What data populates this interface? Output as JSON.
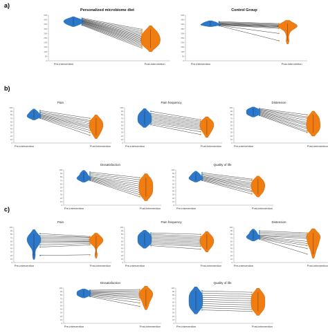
{
  "sections": [
    "a)",
    "b)",
    "c)"
  ],
  "colors": {
    "pre": "#2e78c9",
    "post": "#f07d12",
    "line": "#222222",
    "axis": "#999999"
  },
  "chart_data": [
    {
      "id": "a1",
      "section": "a)",
      "type": "violin-paired",
      "title": "Personalized microbiome diet",
      "bold": true,
      "categories": [
        "Pre-intervention",
        "Post-intervention"
      ],
      "ylim": [
        0,
        500
      ],
      "yticks": [
        "0",
        "50",
        "100",
        "150",
        "200",
        "250",
        "300",
        "350",
        "400",
        "450",
        "500"
      ],
      "pre": [
        468,
        460,
        455,
        450,
        445,
        440,
        436,
        432,
        428,
        422,
        418,
        414,
        408,
        402,
        396,
        390
      ],
      "post": [
        345,
        328,
        310,
        295,
        280,
        268,
        256,
        244,
        232,
        220,
        208,
        196,
        184,
        170,
        156,
        140
      ]
    },
    {
      "id": "a2",
      "section": "a)",
      "type": "violin-paired",
      "title": "Control Group",
      "bold": true,
      "categories": [
        "Pre-intervention",
        "Post-intervention"
      ],
      "ylim": [
        0,
        500
      ],
      "yticks": [
        "0",
        "50",
        "100",
        "150",
        "200",
        "250",
        "300",
        "350",
        "400",
        "450",
        "500"
      ],
      "pre": [
        430,
        422,
        416,
        410,
        405,
        400,
        396,
        392,
        388,
        384
      ],
      "post": [
        408,
        400,
        392,
        385,
        378,
        372,
        365,
        355,
        300,
        220
      ]
    },
    {
      "id": "b1",
      "section": "b)",
      "type": "violin-paired",
      "title": "Pain",
      "bold": false,
      "categories": [
        "Pre-intervention",
        "Post-intervention"
      ],
      "ylim": [
        0,
        100
      ],
      "yticks": [
        "0",
        "10",
        "20",
        "30",
        "40",
        "50",
        "60",
        "70",
        "80",
        "90",
        "100"
      ],
      "pre": [
        92,
        88,
        85,
        82,
        80,
        78,
        76,
        74,
        72,
        70
      ],
      "post": [
        70,
        64,
        60,
        55,
        50,
        46,
        42,
        36,
        30,
        22
      ]
    },
    {
      "id": "b2",
      "section": "b)",
      "type": "violin-paired",
      "title": "Pain frequency",
      "bold": false,
      "categories": [
        "Pre-intervention",
        "Post-intervention"
      ],
      "ylim": [
        0,
        100
      ],
      "yticks": [
        "0",
        "10",
        "20",
        "30",
        "40",
        "50",
        "60",
        "70",
        "80",
        "90",
        "100"
      ],
      "pre": [
        90,
        84,
        80,
        76,
        72,
        68,
        64,
        60,
        56,
        52
      ],
      "post": [
        66,
        62,
        58,
        54,
        50,
        46,
        42,
        38,
        32,
        24
      ]
    },
    {
      "id": "b3",
      "section": "b)",
      "type": "violin-paired",
      "title": "Distension",
      "bold": false,
      "categories": [
        "Pre-intervention",
        "Post-intervention"
      ],
      "ylim": [
        0,
        100
      ],
      "yticks": [
        "0",
        "10",
        "20",
        "30",
        "40",
        "50",
        "60",
        "70",
        "80",
        "90",
        "100"
      ],
      "pre": [
        98,
        96,
        94,
        92,
        90,
        88,
        86,
        84,
        82,
        80,
        78
      ],
      "post": [
        80,
        74,
        70,
        64,
        58,
        54,
        50,
        44,
        40,
        34,
        30
      ]
    },
    {
      "id": "b4",
      "section": "b)",
      "type": "violin-paired",
      "title": "Dissatisfaction",
      "bold": false,
      "categories": [
        "Pre-intervention",
        "Post-intervention"
      ],
      "ylim": [
        0,
        100
      ],
      "yticks": [
        "0",
        "10",
        "20",
        "30",
        "40",
        "50",
        "60",
        "70",
        "80",
        "90",
        "100"
      ],
      "pre": [
        94,
        90,
        86,
        82,
        80,
        78,
        76,
        74,
        72,
        70
      ],
      "post": [
        78,
        72,
        66,
        60,
        54,
        48,
        42,
        36,
        30,
        24
      ]
    },
    {
      "id": "b5",
      "section": "b)",
      "type": "violin-paired",
      "title": "Quality of life",
      "bold": false,
      "categories": [
        "Pre-intervention",
        "Post-intervention"
      ],
      "ylim": [
        0,
        100
      ],
      "yticks": [
        "0",
        "10",
        "20",
        "30",
        "40",
        "50",
        "60",
        "70",
        "80",
        "90",
        "100"
      ],
      "pre": [
        92,
        88,
        85,
        82,
        80,
        78,
        76,
        74,
        72,
        70
      ],
      "post": [
        74,
        70,
        64,
        60,
        56,
        52,
        48,
        42,
        38,
        32
      ]
    },
    {
      "id": "c1",
      "section": "c)",
      "type": "violin-paired",
      "title": "Pain",
      "bold": false,
      "categories": [
        "Pre-intervention",
        "Post-intervention"
      ],
      "ylim": [
        0,
        100
      ],
      "yticks": [
        "0",
        "10",
        "20",
        "30",
        "40",
        "50",
        "60",
        "70",
        "80",
        "90",
        "100"
      ],
      "pre": [
        82,
        76,
        72,
        68,
        64,
        60,
        56,
        50,
        44,
        20
      ],
      "post": [
        74,
        72,
        70,
        66,
        62,
        60,
        58,
        54,
        50,
        22
      ]
    },
    {
      "id": "c2",
      "section": "c)",
      "type": "violin-paired",
      "title": "Pain frequency",
      "bold": false,
      "categories": [
        "Pre-intervention",
        "Post-intervention"
      ],
      "ylim": [
        0,
        100
      ],
      "yticks": [
        "0",
        "10",
        "20",
        "30",
        "40",
        "50",
        "60",
        "70",
        "80",
        "90",
        "100"
      ],
      "pre": [
        84,
        80,
        76,
        72,
        68,
        64,
        60,
        56,
        52,
        48
      ],
      "post": [
        80,
        74,
        70,
        66,
        62,
        58,
        54,
        50,
        46,
        38
      ]
    },
    {
      "id": "c3",
      "section": "c)",
      "type": "violin-paired",
      "title": "Distension",
      "bold": false,
      "categories": [
        "Pre-intervention",
        "Post-intervention"
      ],
      "ylim": [
        0,
        100
      ],
      "yticks": [
        "0",
        "10",
        "20",
        "30",
        "40",
        "50",
        "60",
        "70",
        "80",
        "90",
        "100"
      ],
      "pre": [
        90,
        86,
        82,
        78,
        76,
        74,
        72,
        70,
        68,
        66
      ],
      "post": [
        84,
        80,
        76,
        72,
        68,
        60,
        54,
        48,
        40,
        24
      ]
    },
    {
      "id": "c4",
      "section": "c)",
      "type": "violin-paired",
      "title": "Dissatisfaction",
      "bold": false,
      "categories": [
        "Pre-intervention",
        "Post-intervention"
      ],
      "ylim": [
        0,
        100
      ],
      "yticks": [
        "0",
        "10",
        "20",
        "30",
        "40",
        "50",
        "60",
        "70",
        "80",
        "90",
        "100"
      ],
      "pre": [
        94,
        92,
        90,
        88,
        86,
        84,
        82,
        80,
        78,
        76
      ],
      "post": [
        96,
        92,
        88,
        84,
        80,
        76,
        72,
        66,
        58,
        48
      ]
    },
    {
      "id": "c5",
      "section": "c)",
      "type": "violin-paired",
      "title": "Quality of life",
      "bold": false,
      "categories": [
        "Pre-intervention",
        "Post-intervention"
      ],
      "ylim": [
        0,
        100
      ],
      "yticks": [
        "0",
        "10",
        "20",
        "30",
        "40",
        "50",
        "60",
        "70",
        "80",
        "90",
        "100"
      ],
      "pre": [
        92,
        86,
        80,
        74,
        68,
        62,
        56,
        50,
        44,
        38
      ],
      "post": [
        88,
        82,
        76,
        70,
        64,
        58,
        52,
        46,
        40,
        34
      ]
    }
  ]
}
